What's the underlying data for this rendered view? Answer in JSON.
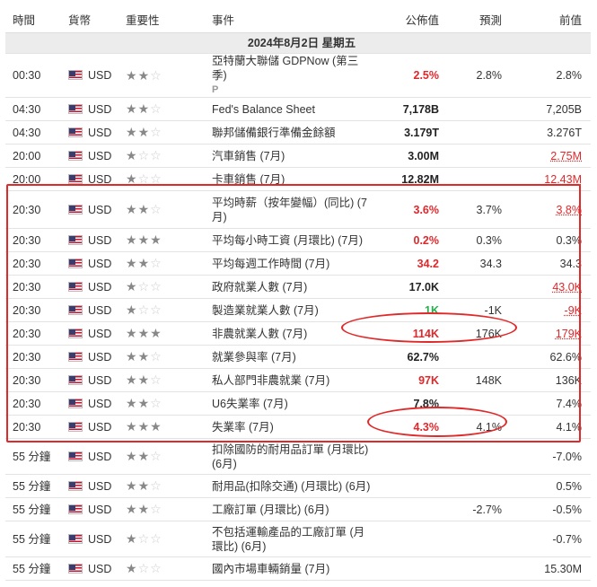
{
  "headers": {
    "time": "時間",
    "currency": "貨幣",
    "importance": "重要性",
    "event": "事件",
    "actual": "公佈值",
    "forecast": "預測",
    "previous": "前值"
  },
  "date_label": "2024年8月2日  星期五",
  "rows": [
    {
      "time": "00:30",
      "cur": "USD",
      "stars": 2,
      "event": "亞特蘭大聯儲 GDPNow (第三季)",
      "p_mark": "P",
      "actual": "2.5%",
      "actual_style": "red",
      "forecast": "2.8%",
      "previous": "2.8%",
      "prev_style": ""
    },
    {
      "time": "04:30",
      "cur": "USD",
      "stars": 2,
      "event": "Fed's Balance Sheet",
      "actual": "7,178B",
      "actual_style": "bold",
      "forecast": "",
      "previous": "7,205B",
      "prev_style": ""
    },
    {
      "time": "04:30",
      "cur": "USD",
      "stars": 2,
      "event": "聯邦儲備銀行準備金餘額",
      "actual": "3.179T",
      "actual_style": "bold",
      "forecast": "",
      "previous": "3.276T",
      "prev_style": ""
    },
    {
      "time": "20:00",
      "cur": "USD",
      "stars": 1,
      "event": "汽車銷售 (7月)",
      "actual": "3.00M",
      "actual_style": "bold",
      "forecast": "",
      "previous": "2.75M",
      "prev_style": "redu"
    },
    {
      "time": "20:00",
      "cur": "USD",
      "stars": 1,
      "event": "卡車銷售 (7月)",
      "actual": "12.82M",
      "actual_style": "bold",
      "forecast": "",
      "previous": "12.43M",
      "prev_style": "redu"
    },
    {
      "time": "20:30",
      "cur": "USD",
      "stars": 2,
      "event": "平均時薪（按年變幅）(同比) (7月)",
      "actual": "3.6%",
      "actual_style": "red",
      "forecast": "3.7%",
      "previous": "3.8%",
      "prev_style": "redu"
    },
    {
      "time": "20:30",
      "cur": "USD",
      "stars": 3,
      "event": "平均每小時工資 (月環比) (7月)",
      "actual": "0.2%",
      "actual_style": "red",
      "forecast": "0.3%",
      "previous": "0.3%",
      "prev_style": ""
    },
    {
      "time": "20:30",
      "cur": "USD",
      "stars": 2,
      "event": "平均每週工作時間 (7月)",
      "actual": "34.2",
      "actual_style": "red",
      "forecast": "34.3",
      "previous": "34.3",
      "prev_style": ""
    },
    {
      "time": "20:30",
      "cur": "USD",
      "stars": 1,
      "event": "政府就業人數 (7月)",
      "actual": "17.0K",
      "actual_style": "bold",
      "forecast": "",
      "previous": "43.0K",
      "prev_style": "redu"
    },
    {
      "time": "20:30",
      "cur": "USD",
      "stars": 1,
      "event": "製造業就業人數 (7月)",
      "actual": "1K",
      "actual_style": "green",
      "forecast": "-1K",
      "previous": "-9K",
      "prev_style": "redu"
    },
    {
      "time": "20:30",
      "cur": "USD",
      "stars": 3,
      "event": "非農就業人數 (7月)",
      "actual": "114K",
      "actual_style": "red",
      "forecast": "176K",
      "previous": "179K",
      "prev_style": "redu"
    },
    {
      "time": "20:30",
      "cur": "USD",
      "stars": 2,
      "event": "就業參與率 (7月)",
      "actual": "62.7%",
      "actual_style": "bold",
      "forecast": "",
      "previous": "62.6%",
      "prev_style": ""
    },
    {
      "time": "20:30",
      "cur": "USD",
      "stars": 2,
      "event": "私人部門非農就業 (7月)",
      "actual": "97K",
      "actual_style": "red",
      "forecast": "148K",
      "previous": "136K",
      "prev_style": ""
    },
    {
      "time": "20:30",
      "cur": "USD",
      "stars": 2,
      "event": "U6失業率 (7月)",
      "actual": "7.8%",
      "actual_style": "bold",
      "forecast": "",
      "previous": "7.4%",
      "prev_style": ""
    },
    {
      "time": "20:30",
      "cur": "USD",
      "stars": 3,
      "event": "失業率 (7月)",
      "actual": "4.3%",
      "actual_style": "red",
      "forecast": "4.1%",
      "previous": "4.1%",
      "prev_style": ""
    },
    {
      "time": "55 分鐘",
      "cur": "USD",
      "stars": 2,
      "event": "扣除國防的耐用品訂單 (月環比) (6月)",
      "actual": "",
      "actual_style": "",
      "forecast": "",
      "previous": "-7.0%",
      "prev_style": ""
    },
    {
      "time": "55 分鐘",
      "cur": "USD",
      "stars": 2,
      "event": "耐用品(扣除交通) (月環比) (6月)",
      "actual": "",
      "actual_style": "",
      "forecast": "",
      "previous": "0.5%",
      "prev_style": ""
    },
    {
      "time": "55 分鐘",
      "cur": "USD",
      "stars": 2,
      "event": "工廠訂單 (月環比) (6月)",
      "actual": "",
      "actual_style": "",
      "forecast": "-2.7%",
      "previous": "-0.5%",
      "prev_style": ""
    },
    {
      "time": "55 分鐘",
      "cur": "USD",
      "stars": 1,
      "event": "不包括運輸產品的工廠訂單 (月環比) (6月)",
      "actual": "",
      "actual_style": "",
      "forecast": "",
      "previous": "-0.7%",
      "prev_style": ""
    },
    {
      "time": "55 分鐘",
      "cur": "USD",
      "stars": 1,
      "event": "國內市場車輛銷量 (7月)",
      "actual": "",
      "actual_style": "",
      "forecast": "",
      "previous": "15.30M",
      "prev_style": ""
    }
  ],
  "colors": {
    "annotation": "#e02a2a",
    "negative": "#e0282b",
    "positive": "#22b14c"
  }
}
